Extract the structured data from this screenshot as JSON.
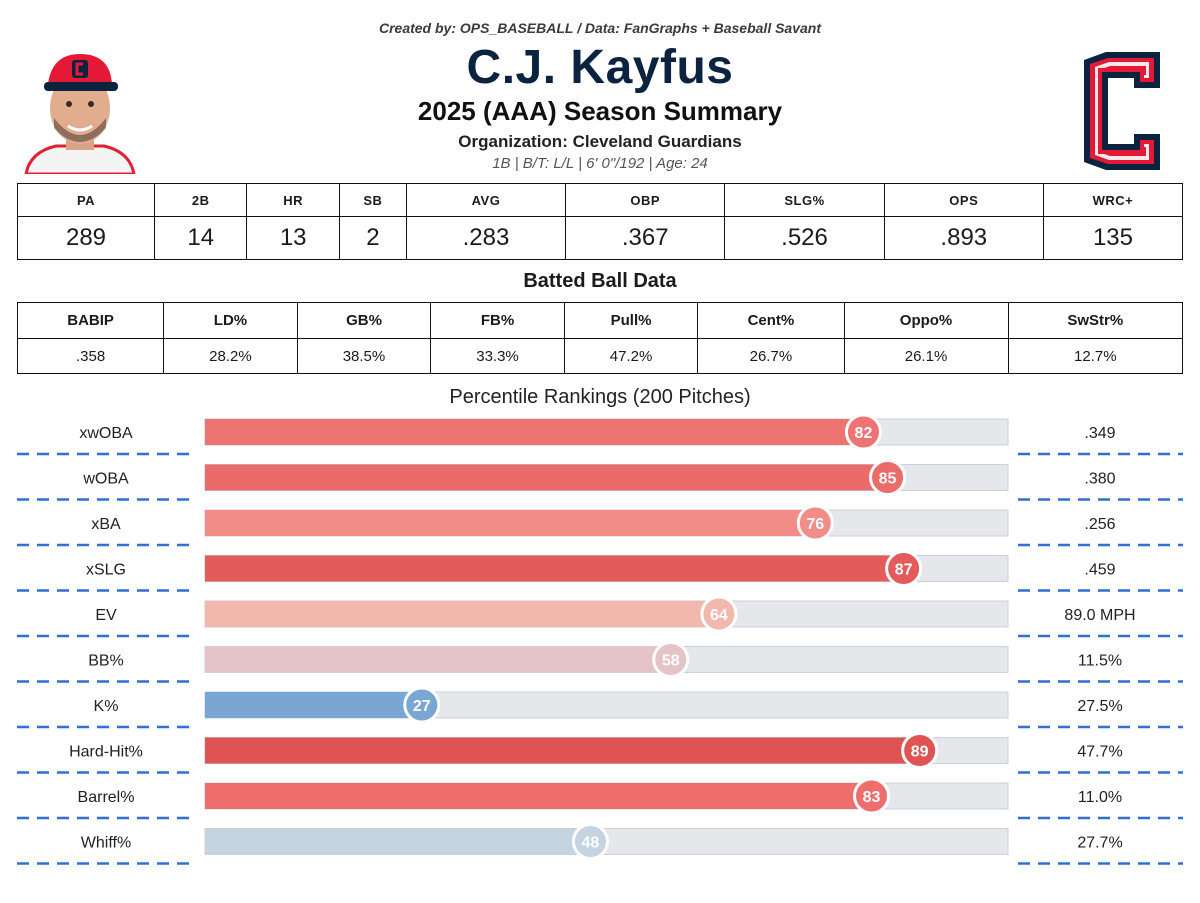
{
  "header": {
    "credit": "Created by: OPS_BASEBALL / Data: FanGraphs + Baseball Savant",
    "player_name": "C.J. Kayfus",
    "subtitle": "2025 (AAA) Season Summary",
    "organization": "Organization: Cleveland Guardians",
    "bio": "1B  |  B/T: L/L  |  6' 0\"/192  |  Age: 24",
    "headshot_icon": "player-headshot-icon",
    "logo_icon": "cleveland-c-logo-icon"
  },
  "colors": {
    "navy": "#0c2340",
    "red": "#e31937",
    "bar_track": "#e6e7eb",
    "dash_line": "#2f6fd6"
  },
  "stats_table": {
    "headers": [
      "PA",
      "2B",
      "HR",
      "SB",
      "AVG",
      "OBP",
      "SLG%",
      "OPS",
      "WRC+"
    ],
    "values": [
      "289",
      "14",
      "13",
      "2",
      ".283",
      ".367",
      ".526",
      ".893",
      "135"
    ]
  },
  "batted_ball": {
    "title": "Batted Ball Data",
    "headers": [
      "BABIP",
      "LD%",
      "GB%",
      "FB%",
      "Pull%",
      "Cent%",
      "Oppo%",
      "SwStr%"
    ],
    "values": [
      ".358",
      "28.2%",
      "38.5%",
      "33.3%",
      "47.2%",
      "26.7%",
      "26.1%",
      "12.7%"
    ]
  },
  "chart_data": {
    "type": "bar",
    "orientation": "horizontal",
    "title": "Percentile Rankings (200 Pitches)",
    "xlim": [
      0,
      100
    ],
    "categories": [
      "xwOBA",
      "wOBA",
      "xBA",
      "xSLG",
      "EV",
      "BB%",
      "K%",
      "Hard-Hit%",
      "Barrel%",
      "Whiff%"
    ],
    "values": [
      82,
      85,
      76,
      87,
      64,
      58,
      27,
      89,
      83,
      48
    ],
    "stat_values": [
      ".349",
      ".380",
      ".256",
      ".459",
      "89.0 MPH",
      "11.5%",
      "27.5%",
      "47.7%",
      "11.0%",
      "27.7%"
    ],
    "colors": [
      "#ee7373",
      "#eb6a6a",
      "#f28c86",
      "#e35b5b",
      "#f2b8ae",
      "#e4c4c6",
      "#79a6d2",
      "#e05353",
      "#ee6e6e",
      "#c6d3e0"
    ]
  }
}
